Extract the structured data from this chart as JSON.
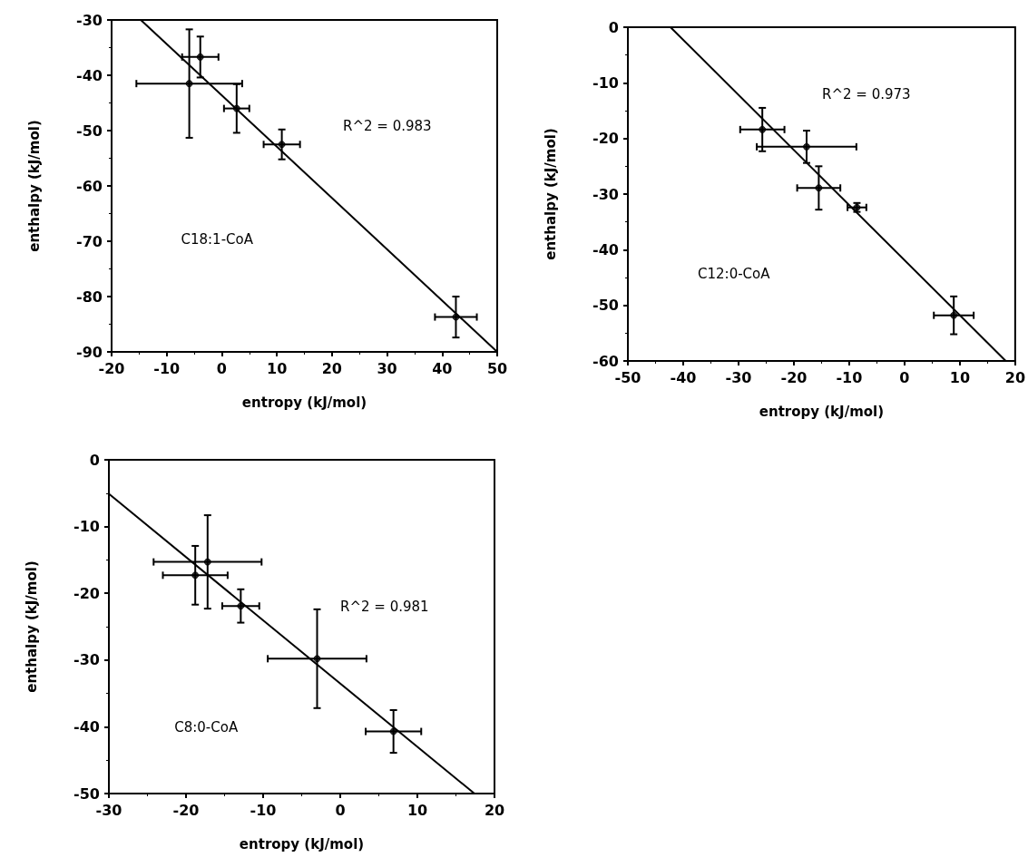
{
  "chart_data": [
    {
      "type": "scatter",
      "xlabel": "entropy (kJ/mol)",
      "ylabel": "enthalpy (kJ/mol)",
      "annotations": [
        "R^2 = 0.983",
        "C18:1-CoA"
      ],
      "xlim": [
        -20,
        50
      ],
      "xticks": [
        -20,
        -10,
        0,
        10,
        20,
        30,
        40,
        50
      ],
      "ylim": [
        -90,
        -30
      ],
      "yticks": [
        -90,
        -80,
        -70,
        -60,
        -50,
        -40,
        -30
      ],
      "grid": false,
      "series": [
        {
          "marker": "circle",
          "color": "#000000",
          "x": [
            -3.9,
            -5.9,
            2.7,
            10.9,
            42.5
          ],
          "values": [
            -36.7,
            -41.5,
            -46,
            -52.5,
            -83.7
          ],
          "errors": [
            3.7,
            9.8,
            4.4,
            2.7,
            3.7
          ],
          "xerrors": [
            3.3,
            9.6,
            2.3,
            3.3,
            3.8
          ]
        },
        {
          "type": "line",
          "color": "#000000",
          "x": [
            -14.7,
            50
          ],
          "values": [
            -30,
            -90
          ]
        }
      ]
    },
    {
      "type": "scatter",
      "xlabel": "entropy (kJ/mol)",
      "ylabel": "enthalpy (kJ/mol)",
      "annotations": [
        "R^2 = 0.973",
        "C12:0-CoA"
      ],
      "xlim": [
        -50,
        20
      ],
      "xticks": [
        -50,
        -40,
        -30,
        -20,
        -10,
        0,
        10,
        20
      ],
      "ylim": [
        -60,
        0
      ],
      "yticks": [
        -60,
        -50,
        -40,
        -30,
        -20,
        -10,
        0
      ],
      "grid": false,
      "series": [
        {
          "marker": "circle",
          "color": "#000000",
          "x": [
            -25.7,
            -17.7,
            -15.5,
            -8.6,
            8.9
          ],
          "values": [
            -18.4,
            -21.5,
            -28.9,
            -32.4,
            -51.8
          ],
          "errors": [
            3.9,
            2.9,
            3.9,
            0.8,
            3.4
          ],
          "xerrors": [
            4,
            9,
            3.9,
            1.7,
            3.6
          ]
        },
        {
          "type": "line",
          "color": "#000000",
          "x": [
            -42.3,
            18.3
          ],
          "values": [
            0,
            -60
          ]
        }
      ]
    },
    {
      "type": "scatter",
      "xlabel": "entropy (kJ/mol)",
      "ylabel": "enthalpy (kJ/mol)",
      "annotations": [
        "R^2 = 0.981",
        "C8:0-CoA"
      ],
      "xlim": [
        -30,
        20
      ],
      "xticks": [
        -30,
        -20,
        -10,
        0,
        10,
        20
      ],
      "ylim": [
        -50,
        0
      ],
      "yticks": [
        -50,
        -40,
        -30,
        -20,
        -10,
        0
      ],
      "grid": false,
      "series": [
        {
          "marker": "circle",
          "color": "#000000",
          "x": [
            -18.8,
            -17.2,
            -12.9,
            -3,
            6.9
          ],
          "values": [
            -17.3,
            -15.3,
            -21.9,
            -29.8,
            -40.7
          ],
          "errors": [
            4.4,
            7,
            2.5,
            7.4,
            3.2
          ],
          "xerrors": [
            4.2,
            7,
            2.4,
            6.4,
            3.6
          ]
        },
        {
          "type": "line",
          "color": "#000000",
          "x": [
            -30,
            17.4
          ],
          "values": [
            -5.1,
            -50
          ]
        }
      ]
    }
  ]
}
